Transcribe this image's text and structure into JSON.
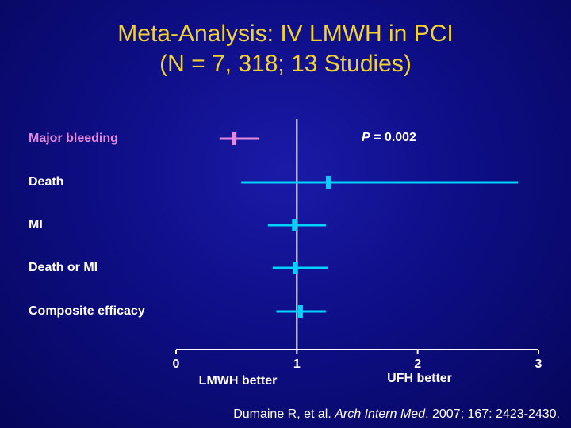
{
  "title": {
    "line1": "Meta-Analysis: IV LMWH in PCI",
    "line2": "(N = 7, 318; 13 Studies)"
  },
  "colors": {
    "title": "#f2d231",
    "pink": "#e389e0",
    "cyan": "#00d2ff",
    "axis": "#ffffff",
    "background": "#0e0e86"
  },
  "chart_data": {
    "type": "forest",
    "title": "Meta-Analysis: IV LMWH in PCI (N = 7, 318; 13 Studies)",
    "xlim": [
      0,
      3
    ],
    "x_ticks": [
      "0",
      "1",
      "2",
      "3"
    ],
    "reference_line": 1,
    "x_labels": {
      "left": "LMWH better",
      "right": "UFH better"
    },
    "rows": [
      {
        "label": "Major bleeding",
        "estimate": 0.48,
        "lower": 0.36,
        "upper": 0.69,
        "color": "#e389e0"
      },
      {
        "label": "Death",
        "estimate": 1.26,
        "lower": 0.54,
        "upper": 2.83,
        "color": "#00d2ff"
      },
      {
        "label": "MI",
        "estimate": 0.98,
        "lower": 0.76,
        "upper": 1.24,
        "color": "#00d2ff"
      },
      {
        "label": "Death or MI",
        "estimate": 0.99,
        "lower": 0.8,
        "upper": 1.26,
        "color": "#00d2ff"
      },
      {
        "label": "Composite efficacy",
        "estimate": 1.03,
        "lower": 0.83,
        "upper": 1.24,
        "color": "#00d2ff"
      }
    ],
    "annotation": {
      "row": "Major bleeding",
      "p_label": "P",
      "p_value": "= 0.002"
    }
  },
  "citation": {
    "authors": "Dumaine R, et al.",
    "journal": "Arch Intern Med",
    "details": ". 2007; 167: 2423-2430."
  }
}
